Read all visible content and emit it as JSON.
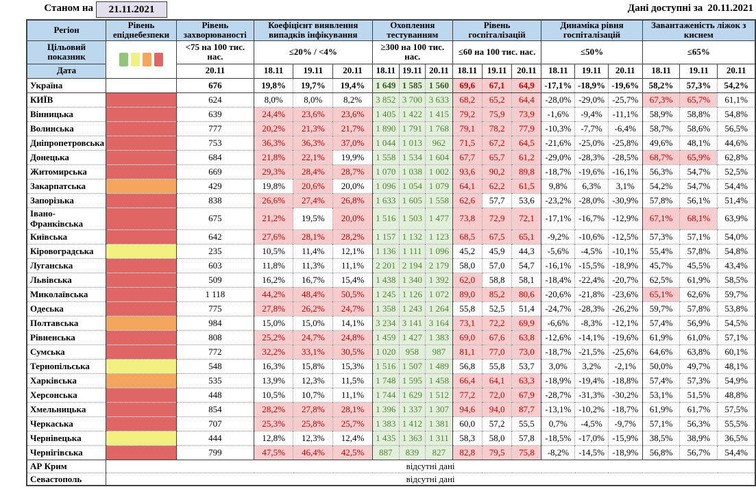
{
  "meta": {
    "as_of_label": "Станом на",
    "as_of_date": "21.11.2021",
    "available_label": "Дані доступні за",
    "available_date": "20.11.2021"
  },
  "columns": {
    "region": "Регіон",
    "epid": "Рівень епіднебезпеки",
    "incidence": "Рівень захворюваності",
    "detection": "Коефіцієнт виявлення випадків інфікування",
    "testing": "Охоплення тестуванням",
    "hospitalization": "Рівень госпіталізацій",
    "dynamics": "Динаміка рівня госпіталізацій",
    "oxygen": "Завантаженість ліжок з киснем"
  },
  "criteria_row_label": "Цільовий показник",
  "date_row_label": "Дата",
  "criteria": {
    "incidence": "<75 на 100 тис. нас.",
    "detection": "≤20% / <4%",
    "testing": "≥300 на 100 тис. нас.",
    "hospitalization": "≤60 на 100 тис. нас.",
    "dynamics": "≤50%",
    "oxygen": "≤65%"
  },
  "incidence_date": "20.11",
  "dates": [
    "18.11",
    "19.11",
    "20.11"
  ],
  "legend_colors": [
    "#93C47D",
    "#F2F07E",
    "#F4A65E",
    "#E06666"
  ],
  "level_colors": {
    "red": "#E06666",
    "orange": "#F4A65E",
    "yellow": "#F2F07E",
    "none": "#FFFFFF"
  },
  "no_data_text": "відсутні дані",
  "rows": [
    {
      "name": "Україна",
      "level": "none",
      "total": true,
      "incidence": "676",
      "det": [
        "19,8%",
        "19,7%",
        "19,4%"
      ],
      "det_hl": [
        0,
        0,
        0
      ],
      "test": [
        "1 649",
        "1 585",
        "1 560"
      ],
      "hosp": [
        "69,6",
        "67,1",
        "64,9"
      ],
      "hosp_hl": [
        1,
        1,
        1
      ],
      "dyn": [
        "-17,1%",
        "-18,9%",
        "-19,6%"
      ],
      "oxy": [
        "58,2%",
        "57,3%",
        "54,2%"
      ],
      "oxy_hl": [
        0,
        0,
        0
      ]
    },
    {
      "name": "КИЇВ",
      "level": "red",
      "rs": true,
      "incidence": "624",
      "det": [
        "8,0%",
        "8,0%",
        "8,2%"
      ],
      "det_hl": [
        0,
        0,
        0
      ],
      "test": [
        "3 852",
        "3 700",
        "3 633"
      ],
      "hosp": [
        "68,2",
        "65,2",
        "64,4"
      ],
      "hosp_hl": [
        1,
        1,
        1
      ],
      "dyn": [
        "-28,0%",
        "-29,0%",
        "-25,7%"
      ],
      "oxy": [
        "67,3%",
        "65,7%",
        "61,1%"
      ],
      "oxy_hl": [
        1,
        1,
        0
      ]
    },
    {
      "name": "Вінницька",
      "level": "red",
      "incidence": "639",
      "det": [
        "24,4%",
        "23,6%",
        "23,6%"
      ],
      "det_hl": [
        1,
        1,
        1
      ],
      "test": [
        "1 405",
        "1 422",
        "1 415"
      ],
      "hosp": [
        "79,2",
        "75,9",
        "73,9"
      ],
      "hosp_hl": [
        1,
        1,
        1
      ],
      "dyn": [
        "-1,6%",
        "-9,4%",
        "-11,1%"
      ],
      "oxy": [
        "58,9%",
        "58,8%",
        "54,8%"
      ],
      "oxy_hl": [
        0,
        0,
        0
      ]
    },
    {
      "name": "Волинська",
      "level": "red",
      "incidence": "777",
      "det": [
        "20,2%",
        "21,3%",
        "21,7%"
      ],
      "det_hl": [
        1,
        1,
        1
      ],
      "test": [
        "1 890",
        "1 791",
        "1 768"
      ],
      "hosp": [
        "79,1",
        "78,2",
        "77,9"
      ],
      "hosp_hl": [
        1,
        1,
        1
      ],
      "dyn": [
        "-10,3%",
        "-7,7%",
        "-6,4%"
      ],
      "oxy": [
        "58,7%",
        "58,6%",
        "56,5%"
      ],
      "oxy_hl": [
        0,
        0,
        0
      ]
    },
    {
      "name": "Дніпропетровська",
      "level": "red",
      "incidence": "753",
      "det": [
        "36,3%",
        "36,3%",
        "37,0%"
      ],
      "det_hl": [
        1,
        1,
        1
      ],
      "test": [
        "1 044",
        "1 013",
        "962"
      ],
      "hosp": [
        "71,5",
        "67,2",
        "64,5"
      ],
      "hosp_hl": [
        1,
        1,
        1
      ],
      "dyn": [
        "-21,6%",
        "-25,0%",
        "-25,8%"
      ],
      "oxy": [
        "49,6%",
        "48,1%",
        "44,6%"
      ],
      "oxy_hl": [
        0,
        0,
        0
      ]
    },
    {
      "name": "Донецька",
      "level": "red",
      "incidence": "684",
      "det": [
        "21,8%",
        "22,1%",
        "19,9%"
      ],
      "det_hl": [
        1,
        1,
        0
      ],
      "test": [
        "1 558",
        "1 534",
        "1 604"
      ],
      "hosp": [
        "67,7",
        "65,7",
        "61,2"
      ],
      "hosp_hl": [
        1,
        1,
        1
      ],
      "dyn": [
        "-29,0%",
        "-28,3%",
        "-28,5%"
      ],
      "oxy": [
        "68,7%",
        "65,9%",
        "62,8%"
      ],
      "oxy_hl": [
        1,
        1,
        0
      ]
    },
    {
      "name": "Житомирська",
      "level": "red",
      "incidence": "669",
      "det": [
        "29,3%",
        "28,4%",
        "28,7%"
      ],
      "det_hl": [
        1,
        1,
        1
      ],
      "test": [
        "1 070",
        "1 038",
        "1 002"
      ],
      "hosp": [
        "93,6",
        "90,2",
        "89,8"
      ],
      "hosp_hl": [
        1,
        1,
        1
      ],
      "dyn": [
        "-18,7%",
        "-19,6%",
        "-16,1%"
      ],
      "oxy": [
        "56,3%",
        "54,7%",
        "52,5%"
      ],
      "oxy_hl": [
        0,
        0,
        0
      ]
    },
    {
      "name": "Закарпатська",
      "level": "orange",
      "incidence": "429",
      "det": [
        "19,8%",
        "20,6%",
        "20,0%"
      ],
      "det_hl": [
        0,
        1,
        0
      ],
      "test": [
        "1 096",
        "1 054",
        "1 079"
      ],
      "hosp": [
        "64,1",
        "62,2",
        "61,5"
      ],
      "hosp_hl": [
        1,
        1,
        1
      ],
      "dyn": [
        "9,8%",
        "6,3%",
        "3,1%"
      ],
      "oxy": [
        "54,2%",
        "54,7%",
        "54,4%"
      ],
      "oxy_hl": [
        0,
        0,
        0
      ]
    },
    {
      "name": "Запорізька",
      "level": "red",
      "incidence": "838",
      "det": [
        "26,6%",
        "27,4%",
        "26,8%"
      ],
      "det_hl": [
        1,
        1,
        1
      ],
      "test": [
        "1 633",
        "1 605",
        "1 558"
      ],
      "hosp": [
        "62,6",
        "57,7",
        "53,6"
      ],
      "hosp_hl": [
        1,
        0,
        0
      ],
      "dyn": [
        "-23,2%",
        "-28,0%",
        "-30,9%"
      ],
      "oxy": [
        "57,8%",
        "56,1%",
        "51,4%"
      ],
      "oxy_hl": [
        0,
        0,
        0
      ]
    },
    {
      "name": "Івано-Франківська",
      "level": "red",
      "incidence": "675",
      "det": [
        "21,2%",
        "19,5%",
        "20,0%"
      ],
      "det_hl": [
        1,
        0,
        1
      ],
      "test": [
        "1 516",
        "1 503",
        "1 477"
      ],
      "hosp": [
        "73,8",
        "72,9",
        "72,1"
      ],
      "hosp_hl": [
        1,
        1,
        1
      ],
      "dyn": [
        "-17,1%",
        "-16,7%",
        "-12,9%"
      ],
      "oxy": [
        "67,1%",
        "68,1%",
        "63,9%"
      ],
      "oxy_hl": [
        1,
        1,
        0
      ]
    },
    {
      "name": "Київська",
      "level": "red",
      "incidence": "642",
      "det": [
        "27,6%",
        "28,1%",
        "28,2%"
      ],
      "det_hl": [
        1,
        1,
        1
      ],
      "test": [
        "1 157",
        "1 132",
        "1 123"
      ],
      "hosp": [
        "68,5",
        "67,5",
        "65,1"
      ],
      "hosp_hl": [
        1,
        1,
        1
      ],
      "dyn": [
        "-9,2%",
        "-10,6%",
        "-12,5%"
      ],
      "oxy": [
        "57,3%",
        "57,1%",
        "54,0%"
      ],
      "oxy_hl": [
        0,
        0,
        0
      ]
    },
    {
      "name": "Кіровоградська",
      "level": "yellow",
      "incidence": "235",
      "det": [
        "10,5%",
        "11,4%",
        "12,1%"
      ],
      "det_hl": [
        0,
        0,
        0
      ],
      "test": [
        "1 136",
        "1 111",
        "1 096"
      ],
      "hosp": [
        "45,2",
        "45,9",
        "44,3"
      ],
      "hosp_hl": [
        0,
        0,
        0
      ],
      "dyn": [
        "-5,6%",
        "-4,5%",
        "-10,1%"
      ],
      "oxy": [
        "55,4%",
        "57,8%",
        "54,8%"
      ],
      "oxy_hl": [
        0,
        0,
        0
      ]
    },
    {
      "name": "Луганська",
      "level": "red",
      "incidence": "603",
      "det": [
        "11,8%",
        "11,3%",
        "11,1%"
      ],
      "det_hl": [
        0,
        0,
        0
      ],
      "test": [
        "2 201",
        "2 194",
        "2 179"
      ],
      "hosp": [
        "58,0",
        "57,0",
        "54,7"
      ],
      "hosp_hl": [
        0,
        0,
        0
      ],
      "dyn": [
        "-16,1%",
        "-15,5%",
        "-18,9%"
      ],
      "oxy": [
        "45,7%",
        "45,5%",
        "43,4%"
      ],
      "oxy_hl": [
        0,
        0,
        0
      ]
    },
    {
      "name": "Львівська",
      "level": "red",
      "incidence": "509",
      "det": [
        "16,2%",
        "16,7%",
        "15,4%"
      ],
      "det_hl": [
        0,
        0,
        0
      ],
      "test": [
        "1 438",
        "1 340",
        "1 392"
      ],
      "hosp": [
        "62,0",
        "58,8",
        "58,1"
      ],
      "hosp_hl": [
        1,
        0,
        0
      ],
      "dyn": [
        "-18,4%",
        "-22,4%",
        "-20,7%"
      ],
      "oxy": [
        "62,5%",
        "61,9%",
        "58,5%"
      ],
      "oxy_hl": [
        0,
        0,
        0
      ]
    },
    {
      "name": "Миколаївська",
      "level": "red",
      "incidence": "1 118",
      "det": [
        "44,2%",
        "48,4%",
        "50,5%"
      ],
      "det_hl": [
        1,
        1,
        1
      ],
      "test": [
        "1 245",
        "1 126",
        "1 072"
      ],
      "hosp": [
        "89,0",
        "85,2",
        "80,6"
      ],
      "hosp_hl": [
        1,
        1,
        1
      ],
      "dyn": [
        "-20,6%",
        "-21,8%",
        "-23,6%"
      ],
      "oxy": [
        "65,1%",
        "62,6%",
        "59,7%"
      ],
      "oxy_hl": [
        1,
        0,
        0
      ]
    },
    {
      "name": "Одеська",
      "level": "red",
      "incidence": "775",
      "det": [
        "27,8%",
        "26,2%",
        "24,7%"
      ],
      "det_hl": [
        1,
        1,
        1
      ],
      "test": [
        "1 358",
        "1 243",
        "1 264"
      ],
      "hosp": [
        "55,8",
        "52,5",
        "51,4"
      ],
      "hosp_hl": [
        0,
        0,
        0
      ],
      "dyn": [
        "-24,7%",
        "-28,3%",
        "-26,2%"
      ],
      "oxy": [
        "59,7%",
        "57,8%",
        "53,8%"
      ],
      "oxy_hl": [
        0,
        0,
        0
      ]
    },
    {
      "name": "Полтавська",
      "level": "orange",
      "incidence": "984",
      "det": [
        "15,0%",
        "15,0%",
        "14,1%"
      ],
      "det_hl": [
        0,
        0,
        0
      ],
      "test": [
        "3 234",
        "3 141",
        "3 164"
      ],
      "hosp": [
        "73,1",
        "72,2",
        "69,9"
      ],
      "hosp_hl": [
        1,
        1,
        1
      ],
      "dyn": [
        "-6,6%",
        "-8,3%",
        "-12,1%"
      ],
      "oxy": [
        "57,4%",
        "56,9%",
        "54,5%"
      ],
      "oxy_hl": [
        0,
        0,
        0
      ]
    },
    {
      "name": "Рівненська",
      "level": "red",
      "incidence": "808",
      "det": [
        "25,2%",
        "24,7%",
        "24,8%"
      ],
      "det_hl": [
        1,
        1,
        1
      ],
      "test": [
        "1 459",
        "1 427",
        "1 383"
      ],
      "hosp": [
        "69,0",
        "67,6",
        "63,8"
      ],
      "hosp_hl": [
        1,
        1,
        1
      ],
      "dyn": [
        "-12,6%",
        "-14,1%",
        "-19,6%"
      ],
      "oxy": [
        "61,9%",
        "61,0%",
        "57,1%"
      ],
      "oxy_hl": [
        0,
        0,
        0
      ]
    },
    {
      "name": "Сумська",
      "level": "red",
      "incidence": "772",
      "det": [
        "32,2%",
        "33,1%",
        "30,5%"
      ],
      "det_hl": [
        1,
        1,
        1
      ],
      "test": [
        "1 020",
        "958",
        "987"
      ],
      "hosp": [
        "81,1",
        "77,0",
        "73,0"
      ],
      "hosp_hl": [
        1,
        1,
        1
      ],
      "dyn": [
        "-18,7%",
        "-21,5%",
        "-25,6%"
      ],
      "oxy": [
        "64,6%",
        "63,8%",
        "60,1%"
      ],
      "oxy_hl": [
        0,
        0,
        0
      ]
    },
    {
      "name": "Тернопільська",
      "level": "yellow",
      "incidence": "548",
      "det": [
        "16,3%",
        "15,8%",
        "15,3%"
      ],
      "det_hl": [
        0,
        0,
        0
      ],
      "test": [
        "1 516",
        "1 507",
        "1 489"
      ],
      "hosp": [
        "56,8",
        "55,8",
        "53,7"
      ],
      "hosp_hl": [
        0,
        0,
        0
      ],
      "dyn": [
        "3,0%",
        "3,2%",
        "-2,1%"
      ],
      "oxy": [
        "50,0%",
        "49,7%",
        "48,1%"
      ],
      "oxy_hl": [
        0,
        0,
        0
      ]
    },
    {
      "name": "Харківська",
      "level": "orange",
      "incidence": "535",
      "det": [
        "13,9%",
        "12,3%",
        "11,5%"
      ],
      "det_hl": [
        0,
        0,
        0
      ],
      "test": [
        "1 748",
        "1 595",
        "1 458"
      ],
      "hosp": [
        "66,4",
        "64,1",
        "63,3"
      ],
      "hosp_hl": [
        1,
        1,
        1
      ],
      "dyn": [
        "-18,9%",
        "-19,4%",
        "-18,8%"
      ],
      "oxy": [
        "57,4%",
        "57,3%",
        "54,9%"
      ],
      "oxy_hl": [
        0,
        0,
        0
      ]
    },
    {
      "name": "Херсонська",
      "level": "red",
      "incidence": "448",
      "det": [
        "10,5%",
        "10,7%",
        "11,1%"
      ],
      "det_hl": [
        0,
        0,
        0
      ],
      "test": [
        "1 744",
        "1 629",
        "1 512"
      ],
      "hosp": [
        "77,2",
        "72,0",
        "67,9"
      ],
      "hosp_hl": [
        1,
        1,
        1
      ],
      "dyn": [
        "-28,7%",
        "-31,3%",
        "-30,2%"
      ],
      "oxy": [
        "53,1%",
        "51,5%",
        "48,8%"
      ],
      "oxy_hl": [
        0,
        0,
        0
      ]
    },
    {
      "name": "Хмельницька",
      "level": "red",
      "incidence": "854",
      "det": [
        "28,2%",
        "27,8%",
        "28,1%"
      ],
      "det_hl": [
        1,
        1,
        1
      ],
      "test": [
        "1 396",
        "1 337",
        "1 307"
      ],
      "hosp": [
        "94,6",
        "94,0",
        "87,7"
      ],
      "hosp_hl": [
        1,
        1,
        1
      ],
      "dyn": [
        "-13,1%",
        "-10,2%",
        "-18,7%"
      ],
      "oxy": [
        "61,9%",
        "61,7%",
        "57,5%"
      ],
      "oxy_hl": [
        0,
        0,
        0
      ]
    },
    {
      "name": "Черкаська",
      "level": "red",
      "incidence": "707",
      "det": [
        "25,3%",
        "25,8%",
        "25,7%"
      ],
      "det_hl": [
        1,
        1,
        1
      ],
      "test": [
        "1 383",
        "1 412",
        "1 381"
      ],
      "hosp": [
        "60,0",
        "57,2",
        "55,5"
      ],
      "hosp_hl": [
        0,
        0,
        0
      ],
      "dyn": [
        "0,7%",
        "-4,5%",
        "-9,7%"
      ],
      "oxy": [
        "57,1%",
        "56,3%",
        "55,5%"
      ],
      "oxy_hl": [
        0,
        0,
        0
      ]
    },
    {
      "name": "Чернівецька",
      "level": "yellow",
      "incidence": "444",
      "det": [
        "12,8%",
        "12,3%",
        "12,4%"
      ],
      "det_hl": [
        0,
        0,
        0
      ],
      "test": [
        "1 435",
        "1 363",
        "1 311"
      ],
      "hosp": [
        "58,3",
        "58,0",
        "57,8"
      ],
      "hosp_hl": [
        0,
        0,
        0
      ],
      "dyn": [
        "-18,5%",
        "-17,0%",
        "-15,9%"
      ],
      "oxy": [
        "38,5%",
        "38,9%",
        "36,5%"
      ],
      "oxy_hl": [
        0,
        0,
        0
      ]
    },
    {
      "name": "Чернігівська",
      "level": "red",
      "incidence": "799",
      "det": [
        "47,5%",
        "46,4%",
        "42,5%"
      ],
      "det_hl": [
        1,
        1,
        1
      ],
      "test": [
        "887",
        "839",
        "827"
      ],
      "hosp": [
        "82,8",
        "79,5",
        "75,8"
      ],
      "hosp_hl": [
        1,
        1,
        1
      ],
      "dyn": [
        "-8,2%",
        "-14,5%",
        "-18,9%"
      ],
      "oxy": [
        "56,8%",
        "56,7%",
        "54,4%"
      ],
      "oxy_hl": [
        0,
        0,
        0
      ]
    },
    {
      "name": "АР Крим",
      "level": "none",
      "no_data": true,
      "rs": true
    },
    {
      "name": "Севастополь",
      "level": "none",
      "no_data": true
    }
  ]
}
